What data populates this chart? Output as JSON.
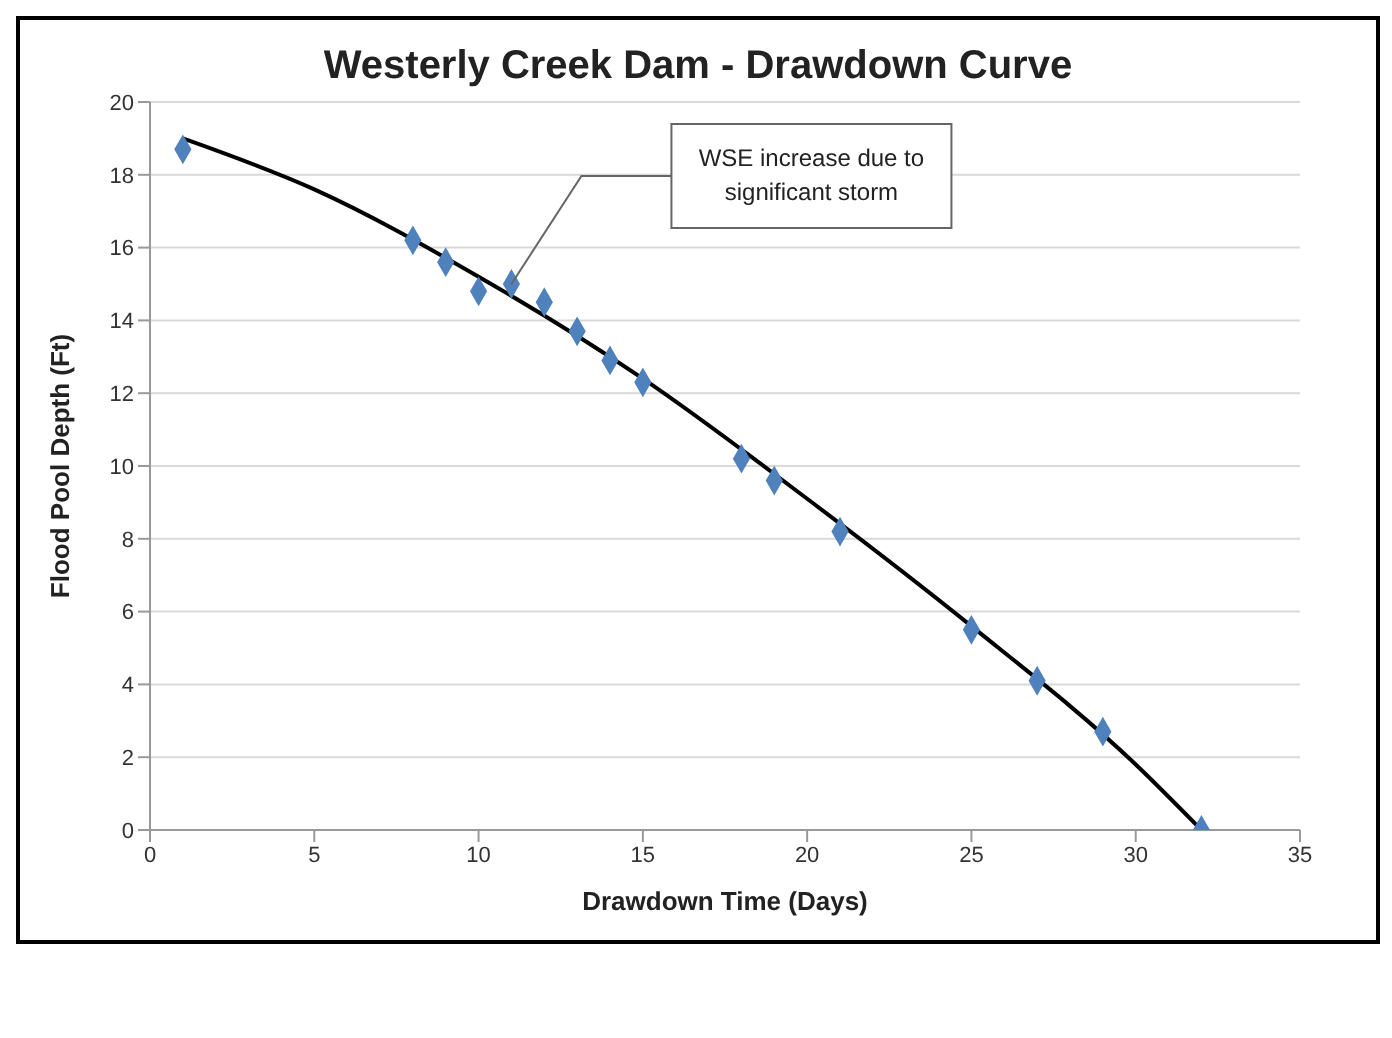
{
  "chart_data": {
    "type": "scatter",
    "title": "Westerly Creek Dam - Drawdown Curve",
    "xlabel": "Drawdown Time (Days)",
    "ylabel": "Flood Pool Depth (Ft)",
    "xlim": [
      0,
      35
    ],
    "xticks": [
      0,
      5,
      10,
      15,
      20,
      25,
      30,
      35
    ],
    "ylim": [
      0,
      20
    ],
    "yticks": [
      0,
      2,
      4,
      6,
      8,
      10,
      12,
      14,
      16,
      18,
      20
    ],
    "grid": "y",
    "marker": "diamond",
    "series": [
      {
        "color": "#4f81bd",
        "x": [
          1,
          8,
          9,
          10,
          11,
          12,
          13,
          14,
          15,
          18,
          19,
          21,
          25,
          27,
          29,
          32
        ],
        "values": [
          18.7,
          16.2,
          15.6,
          14.8,
          15.0,
          14.5,
          13.7,
          12.9,
          12.3,
          10.2,
          9.6,
          8.2,
          5.5,
          4.1,
          2.7,
          0
        ]
      },
      {
        "type": "line",
        "color": "#000000",
        "marker": "none",
        "line_style": "solid",
        "x": [
          1,
          5,
          10,
          15,
          20,
          25,
          30,
          32
        ],
        "values": [
          19,
          17.6,
          15.2,
          12.4,
          9.1,
          5.6,
          1.8,
          0
        ]
      }
    ],
    "annotations": [
      {
        "text": "WSE increase due to significant storm",
        "x": 11,
        "y": 15.0
      }
    ]
  }
}
